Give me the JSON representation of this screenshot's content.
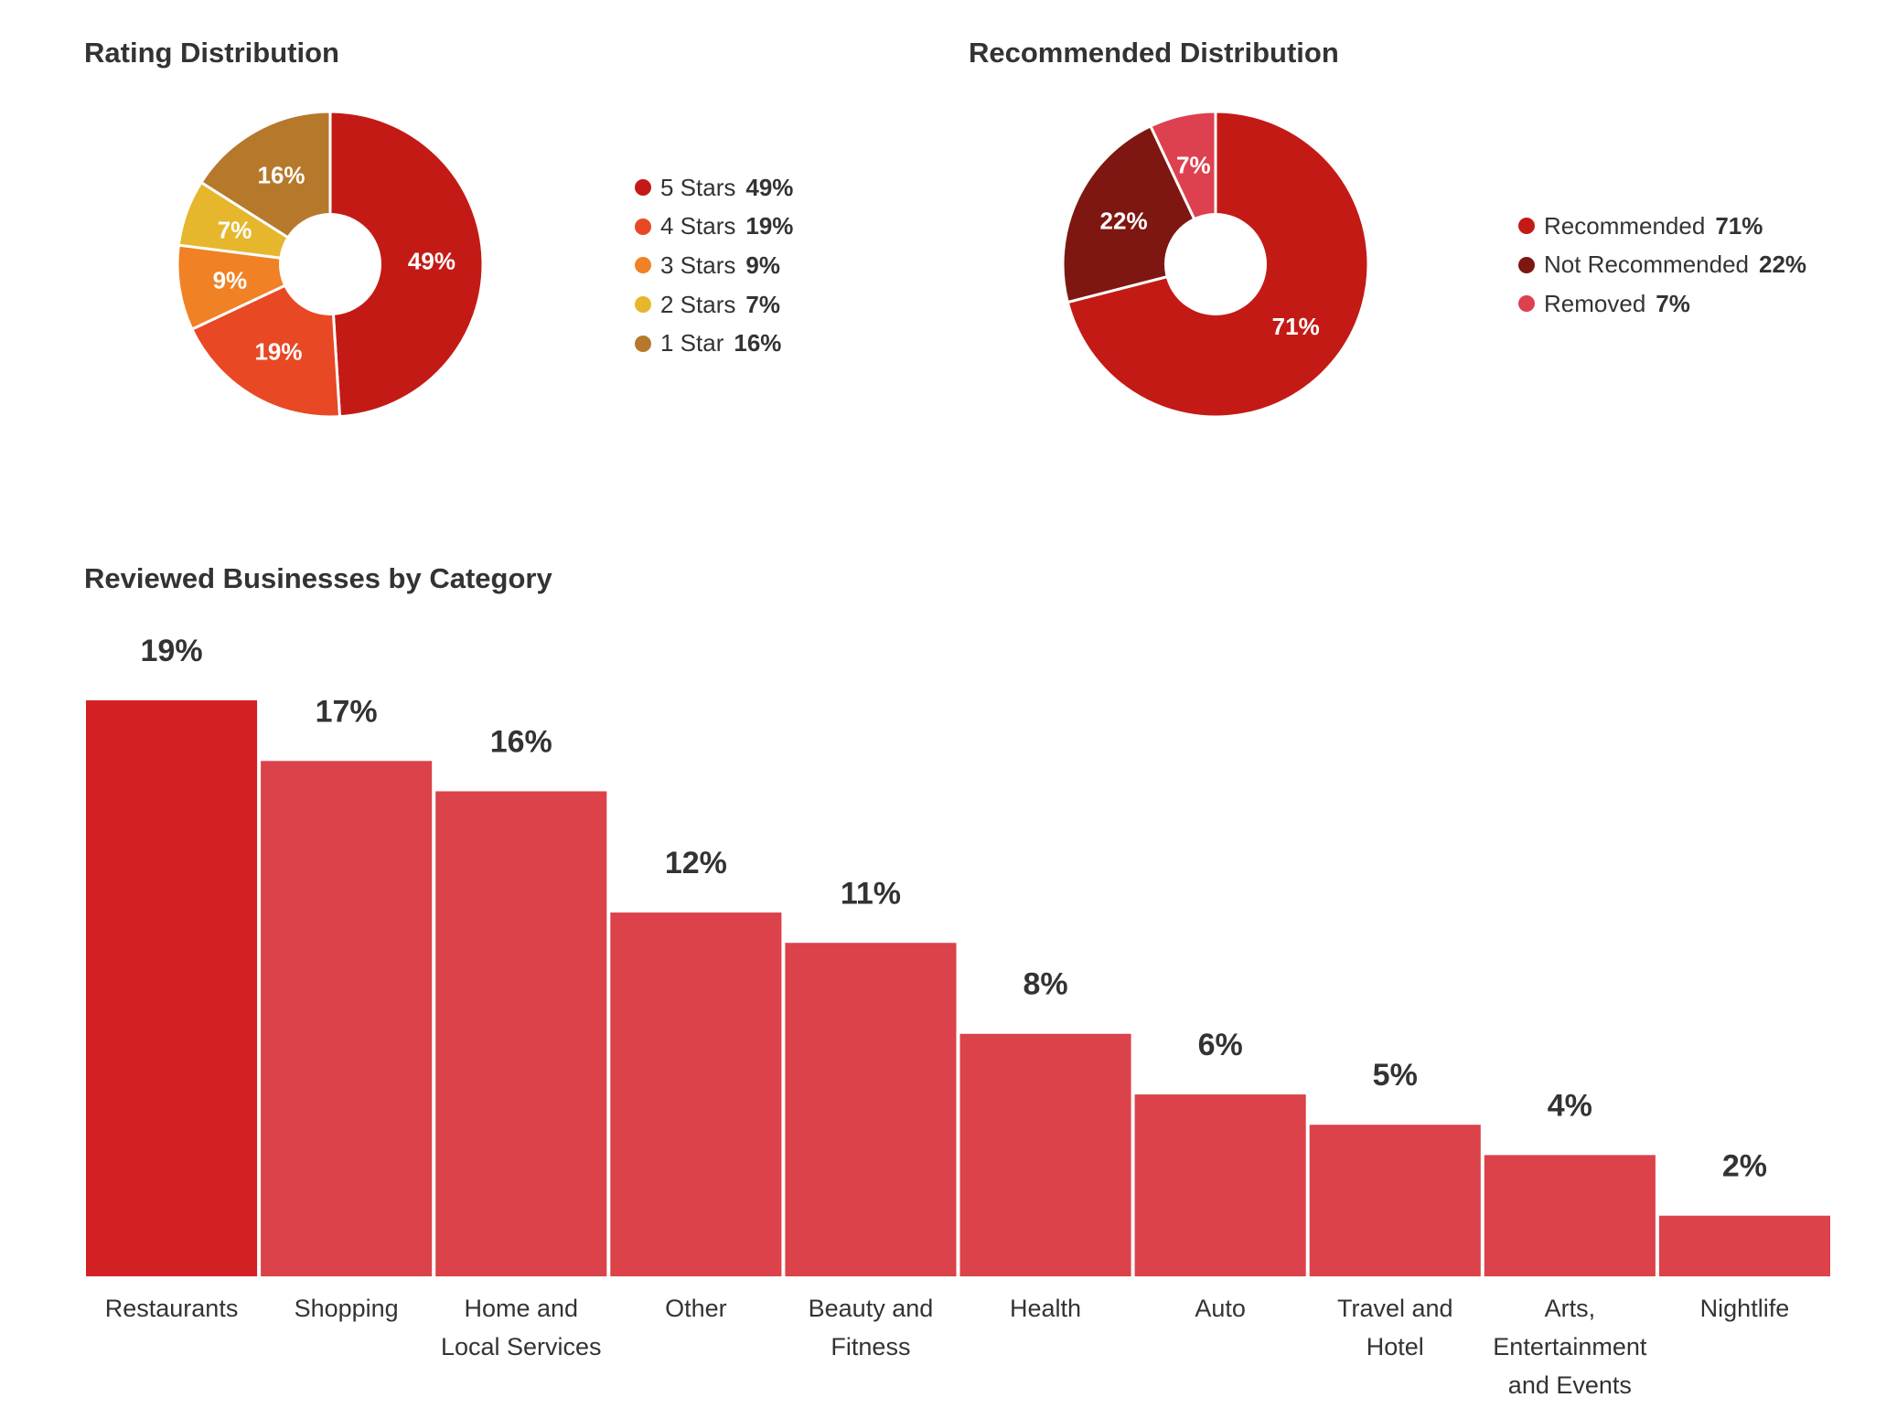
{
  "colors": {
    "five_stars": "#c41a16",
    "four_stars": "#e94825",
    "three_stars": "#f08125",
    "two_stars": "#e6b62d",
    "one_star": "#b6792c",
    "recommended": "#c41a16",
    "not_recommended": "#7e1711",
    "removed": "#dd4150",
    "bar_highlight": "#d32023",
    "bar_default": "#db424a"
  },
  "chart_data": [
    {
      "type": "pie",
      "title": "Rating Distribution",
      "donut": true,
      "legend_position": "right",
      "slices": [
        {
          "label": "5 Stars",
          "value": 49,
          "display": "49%",
          "color": "#c41a16"
        },
        {
          "label": "4 Stars",
          "value": 19,
          "display": "19%",
          "color": "#e94825"
        },
        {
          "label": "3 Stars",
          "value": 9,
          "display": "9%",
          "color": "#f08125"
        },
        {
          "label": "2 Stars",
          "value": 7,
          "display": "7%",
          "color": "#e6b62d"
        },
        {
          "label": "1 Star",
          "value": 16,
          "display": "16%",
          "color": "#b6792c"
        }
      ]
    },
    {
      "type": "pie",
      "title": "Recommended Distribution",
      "donut": true,
      "legend_position": "right",
      "slices": [
        {
          "label": "Recommended",
          "value": 71,
          "display": "71%",
          "color": "#c41a16"
        },
        {
          "label": "Not Recommended",
          "value": 22,
          "display": "22%",
          "color": "#7e1711"
        },
        {
          "label": "Removed",
          "value": 7,
          "display": "7%",
          "color": "#dd4150"
        }
      ]
    },
    {
      "type": "bar",
      "title": "Reviewed Businesses by Category",
      "grid": false,
      "categories": [
        "Restaurants",
        "Shopping",
        "Home and Local Services",
        "Other",
        "Beauty and Fitness",
        "Health",
        "Auto",
        "Travel and Hotel",
        "Arts, Entertainment and Events",
        "Nightlife"
      ],
      "category_lines": [
        [
          "Restaurants"
        ],
        [
          "Shopping"
        ],
        [
          "Home and",
          "Local Services"
        ],
        [
          "Other"
        ],
        [
          "Beauty and",
          "Fitness"
        ],
        [
          "Health"
        ],
        [
          "Auto"
        ],
        [
          "Travel and",
          "Hotel"
        ],
        [
          "Arts,",
          "Entertainment",
          "and Events"
        ],
        [
          "Nightlife"
        ]
      ],
      "values": [
        19,
        17,
        16,
        12,
        11,
        8,
        6,
        5,
        4,
        2
      ],
      "value_labels": [
        "19%",
        "17%",
        "16%",
        "12%",
        "11%",
        "8%",
        "6%",
        "5%",
        "4%",
        "2%"
      ],
      "ylim": [
        0,
        19
      ]
    }
  ]
}
